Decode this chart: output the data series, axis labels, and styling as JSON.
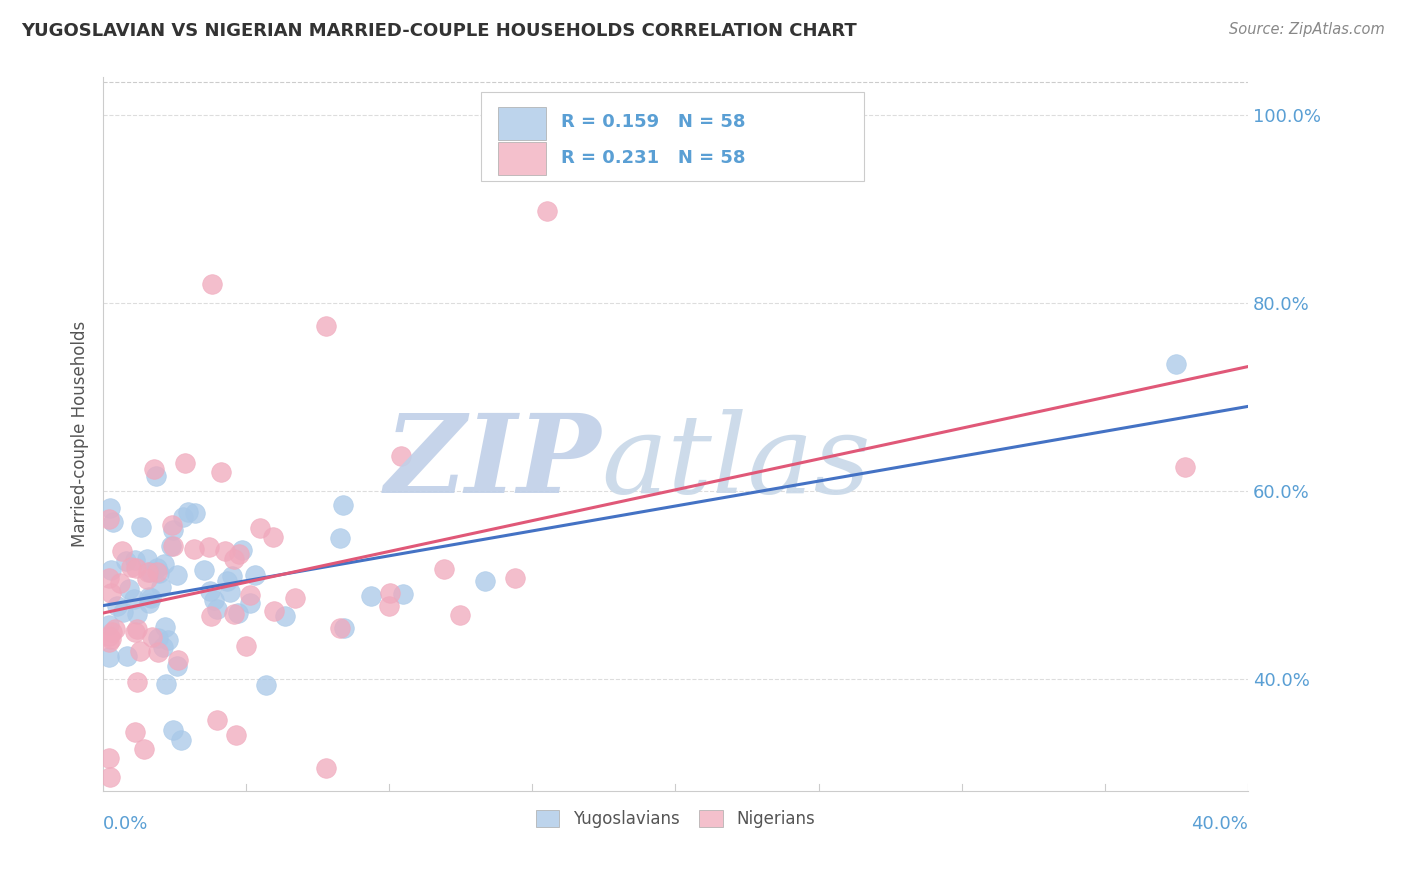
{
  "title": "YUGOSLAVIAN VS NIGERIAN MARRIED-COUPLE HOUSEHOLDS CORRELATION CHART",
  "source": "Source: ZipAtlas.com",
  "ylabel": "Married-couple Households",
  "x_min": 0.0,
  "x_max": 0.4,
  "y_min": 0.28,
  "y_max": 1.04,
  "yticks": [
    0.4,
    0.6,
    0.8,
    1.0
  ],
  "ytick_labels": [
    "40.0%",
    "60.0%",
    "80.0%",
    "100.0%"
  ],
  "blue_R": 0.159,
  "pink_R": 0.231,
  "N": 58,
  "blue_color": "#A8C8E8",
  "pink_color": "#F0A8BC",
  "blue_line_color": "#4472C4",
  "pink_line_color": "#E05878",
  "watermark_zip_color": "#C0D0E8",
  "watermark_atlas_color": "#C8D8E8",
  "background_color": "#FFFFFF",
  "legend_box_blue": "#BDD4EC",
  "legend_box_pink": "#F4C0CC",
  "grid_color": "#DDDDDD",
  "title_color": "#333333",
  "source_color": "#888888",
  "tick_color": "#5A9FD4",
  "ylabel_color": "#555555"
}
